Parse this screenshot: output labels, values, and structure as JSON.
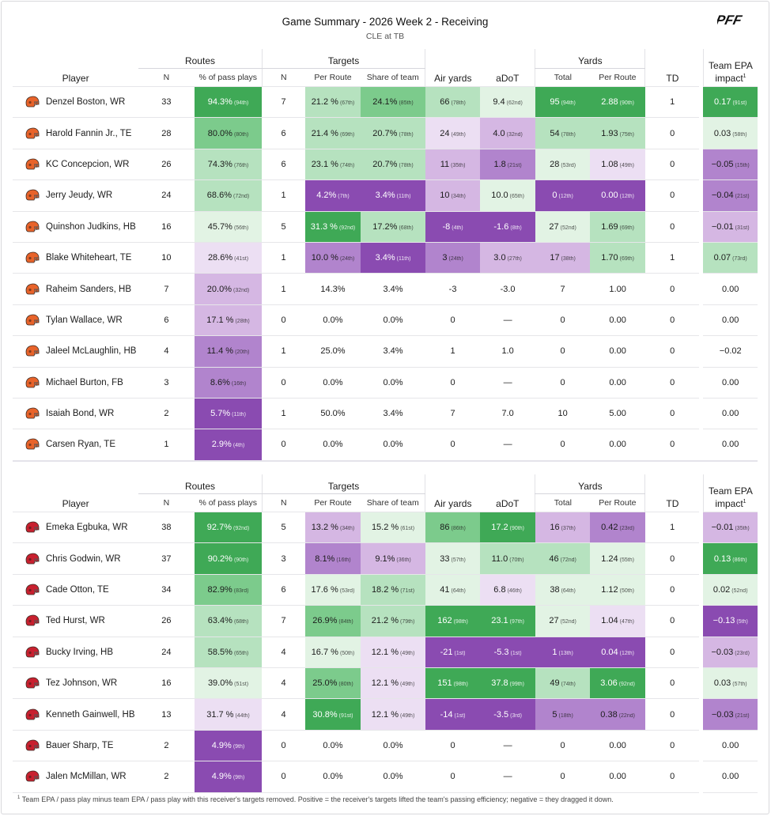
{
  "title": "Game Summary - 2026 Week 2 - Receiving",
  "subtitle": "CLE at TB",
  "logo_text": "PFF",
  "headers": {
    "player": "Player",
    "routes": "Routes",
    "targets": "Targets",
    "yards": "Yards",
    "n": "N",
    "pct_pass_plays": "% of pass plays",
    "per_route": "Per Route",
    "share_of_team": "Share of team",
    "air_yards": "Air yards",
    "adot": "aDoT",
    "total": "Total",
    "td": "TD",
    "epa": "Team EPA impact",
    "epa_sup": "1"
  },
  "colors": {
    "green_dark": "#3fa956",
    "green_mid": "#7ccb8c",
    "green_light": "#b6e2bf",
    "green_pale": "#e2f3e4",
    "purple_pale": "#ecdff3",
    "purple_light": "#d5b7e3",
    "purple_mid": "#b184cd",
    "purple_dark": "#8a4bb1"
  },
  "teams": [
    {
      "id": "cle",
      "helmet_color": "#e8632a",
      "players": [
        {
          "name": "Denzel Boston, WR",
          "routes_n": "33",
          "routes_pct": "94.3%",
          "routes_pct_pr": "(94th)",
          "routes_pct_c": "g4",
          "targets_n": "7",
          "per_route": "21.2 %",
          "per_route_pr": "(67th)",
          "per_route_c": "g2",
          "share": "24.1%",
          "share_pr": "(85th)",
          "share_c": "g3",
          "air": "66",
          "air_pr": "(78th)",
          "air_c": "g2",
          "adot": "9.4",
          "adot_pr": "(62nd)",
          "adot_c": "g1",
          "yds": "95",
          "yds_pr": "(94th)",
          "yds_c": "g4",
          "ypr": "2.88",
          "ypr_pr": "(90th)",
          "ypr_c": "g4",
          "td": "1",
          "epa": "0.17",
          "epa_pr": "(91st)",
          "epa_c": "g4"
        },
        {
          "name": "Harold Fannin Jr., TE",
          "routes_n": "28",
          "routes_pct": "80.0%",
          "routes_pct_pr": "(80th)",
          "routes_pct_c": "g3",
          "targets_n": "6",
          "per_route": "21.4 %",
          "per_route_pr": "(69th)",
          "per_route_c": "g2",
          "share": "20.7%",
          "share_pr": "(78th)",
          "share_c": "g2",
          "air": "24",
          "air_pr": "(49th)",
          "air_c": "p1",
          "adot": "4.0",
          "adot_pr": "(32nd)",
          "adot_c": "p2",
          "yds": "54",
          "yds_pr": "(78th)",
          "yds_c": "g2",
          "ypr": "1.93",
          "ypr_pr": "(75th)",
          "ypr_c": "g2",
          "td": "0",
          "epa": "0.03",
          "epa_pr": "(58th)",
          "epa_c": "g1"
        },
        {
          "name": "KC Concepcion, WR",
          "routes_n": "26",
          "routes_pct": "74.3%",
          "routes_pct_pr": "(76th)",
          "routes_pct_c": "g2",
          "targets_n": "6",
          "per_route": "23.1 %",
          "per_route_pr": "(74th)",
          "per_route_c": "g2",
          "share": "20.7%",
          "share_pr": "(78th)",
          "share_c": "g2",
          "air": "11",
          "air_pr": "(35th)",
          "air_c": "p2",
          "adot": "1.8",
          "adot_pr": "(21st)",
          "adot_c": "p3",
          "yds": "28",
          "yds_pr": "(53rd)",
          "yds_c": "g1",
          "ypr": "1.08",
          "ypr_pr": "(49th)",
          "ypr_c": "p1",
          "td": "0",
          "epa": "−0.05",
          "epa_pr": "(15th)",
          "epa_c": "p3"
        },
        {
          "name": "Jerry Jeudy, WR",
          "routes_n": "24",
          "routes_pct": "68.6%",
          "routes_pct_pr": "(72nd)",
          "routes_pct_c": "g2",
          "targets_n": "1",
          "per_route": "4.2%",
          "per_route_pr": "(7th)",
          "per_route_c": "p4",
          "share": "3.4%",
          "share_pr": "(11th)",
          "share_c": "p4",
          "air": "10",
          "air_pr": "(34th)",
          "air_c": "p2",
          "adot": "10.0",
          "adot_pr": "(65th)",
          "adot_c": "g1",
          "yds": "0",
          "yds_pr": "(12th)",
          "yds_c": "p4",
          "ypr": "0.00",
          "ypr_pr": "(12th)",
          "ypr_c": "p4",
          "td": "0",
          "epa": "−0.04",
          "epa_pr": "(21st)",
          "epa_c": "p3"
        },
        {
          "name": "Quinshon Judkins, HB",
          "routes_n": "16",
          "routes_pct": "45.7%",
          "routes_pct_pr": "(56th)",
          "routes_pct_c": "g1",
          "targets_n": "5",
          "per_route": "31.3 %",
          "per_route_pr": "(92nd)",
          "per_route_c": "g4",
          "share": "17.2%",
          "share_pr": "(68th)",
          "share_c": "g2",
          "air": "-8",
          "air_pr": "(4th)",
          "air_c": "p4",
          "adot": "-1.6",
          "adot_pr": "(8th)",
          "adot_c": "p4",
          "yds": "27",
          "yds_pr": "(52nd)",
          "yds_c": "g1",
          "ypr": "1.69",
          "ypr_pr": "(69th)",
          "ypr_c": "g2",
          "td": "0",
          "epa": "−0.01",
          "epa_pr": "(31st)",
          "epa_c": "p2"
        },
        {
          "name": "Blake Whiteheart, TE",
          "routes_n": "10",
          "routes_pct": "28.6%",
          "routes_pct_pr": "(41st)",
          "routes_pct_c": "p1",
          "targets_n": "1",
          "per_route": "10.0 %",
          "per_route_pr": "(24th)",
          "per_route_c": "p3",
          "share": "3.4%",
          "share_pr": "(11th)",
          "share_c": "p4",
          "air": "3",
          "air_pr": "(24th)",
          "air_c": "p3",
          "adot": "3.0",
          "adot_pr": "(27th)",
          "adot_c": "p2",
          "yds": "17",
          "yds_pr": "(38th)",
          "yds_c": "p2",
          "ypr": "1.70",
          "ypr_pr": "(69th)",
          "ypr_c": "g2",
          "td": "1",
          "epa": "0.07",
          "epa_pr": "(73rd)",
          "epa_c": "g2"
        },
        {
          "name": "Raheim Sanders, HB",
          "routes_n": "7",
          "routes_pct": "20.0%",
          "routes_pct_pr": "(32nd)",
          "routes_pct_c": "p2",
          "targets_n": "1",
          "per_route": "14.3%",
          "share": "3.4%",
          "air": "-3",
          "adot": "-3.0",
          "yds": "7",
          "ypr": "1.00",
          "td": "0",
          "epa": "0.00"
        },
        {
          "name": "Tylan Wallace, WR",
          "routes_n": "6",
          "routes_pct": "17.1 %",
          "routes_pct_pr": "(28th)",
          "routes_pct_c": "p2",
          "targets_n": "0",
          "per_route": "0.0%",
          "share": "0.0%",
          "air": "0",
          "adot": "—",
          "yds": "0",
          "ypr": "0.00",
          "td": "0",
          "epa": "0.00"
        },
        {
          "name": "Jaleel McLaughlin, HB",
          "routes_n": "4",
          "routes_pct": "11.4 %",
          "routes_pct_pr": "(20th)",
          "routes_pct_c": "p3",
          "targets_n": "1",
          "per_route": "25.0%",
          "share": "3.4%",
          "air": "1",
          "adot": "1.0",
          "yds": "0",
          "ypr": "0.00",
          "td": "0",
          "epa": "−0.02"
        },
        {
          "name": "Michael Burton, FB",
          "routes_n": "3",
          "routes_pct": "8.6%",
          "routes_pct_pr": "(16th)",
          "routes_pct_c": "p3",
          "targets_n": "0",
          "per_route": "0.0%",
          "share": "0.0%",
          "air": "0",
          "adot": "—",
          "yds": "0",
          "ypr": "0.00",
          "td": "0",
          "epa": "0.00"
        },
        {
          "name": "Isaiah Bond, WR",
          "routes_n": "2",
          "routes_pct": "5.7%",
          "routes_pct_pr": "(11th)",
          "routes_pct_c": "p4",
          "targets_n": "1",
          "per_route": "50.0%",
          "share": "3.4%",
          "air": "7",
          "adot": "7.0",
          "yds": "10",
          "ypr": "5.00",
          "td": "0",
          "epa": "0.00"
        },
        {
          "name": "Carsen Ryan, TE",
          "routes_n": "1",
          "routes_pct": "2.9%",
          "routes_pct_pr": "(4th)",
          "routes_pct_c": "p4",
          "targets_n": "0",
          "per_route": "0.0%",
          "share": "0.0%",
          "air": "0",
          "adot": "—",
          "yds": "0",
          "ypr": "0.00",
          "td": "0",
          "epa": "0.00"
        }
      ]
    },
    {
      "id": "tb",
      "helmet_color": "#c8202f",
      "players": [
        {
          "name": "Emeka Egbuka, WR",
          "routes_n": "38",
          "routes_pct": "92.7%",
          "routes_pct_pr": "(92nd)",
          "routes_pct_c": "g4",
          "targets_n": "5",
          "per_route": "13.2 %",
          "per_route_pr": "(34th)",
          "per_route_c": "p2",
          "share": "15.2 %",
          "share_pr": "(61st)",
          "share_c": "g1",
          "air": "86",
          "air_pr": "(86th)",
          "air_c": "g3",
          "adot": "17.2",
          "adot_pr": "(90th)",
          "adot_c": "g4",
          "yds": "16",
          "yds_pr": "(37th)",
          "yds_c": "p2",
          "ypr": "0.42",
          "ypr_pr": "(23rd)",
          "ypr_c": "p3",
          "td": "1",
          "epa": "−0.01",
          "epa_pr": "(35th)",
          "epa_c": "p2"
        },
        {
          "name": "Chris Godwin, WR",
          "routes_n": "37",
          "routes_pct": "90.2%",
          "routes_pct_pr": "(90th)",
          "routes_pct_c": "g4",
          "targets_n": "3",
          "per_route": "8.1%",
          "per_route_pr": "(16th)",
          "per_route_c": "p3",
          "share": "9.1%",
          "share_pr": "(36th)",
          "share_c": "p2",
          "air": "33",
          "air_pr": "(57th)",
          "air_c": "g1",
          "adot": "11.0",
          "adot_pr": "(70th)",
          "adot_c": "g2",
          "yds": "46",
          "yds_pr": "(72nd)",
          "yds_c": "g2",
          "ypr": "1.24",
          "ypr_pr": "(55th)",
          "ypr_c": "g1",
          "td": "0",
          "epa": "0.13",
          "epa_pr": "(86th)",
          "epa_c": "g4"
        },
        {
          "name": "Cade Otton, TE",
          "routes_n": "34",
          "routes_pct": "82.9%",
          "routes_pct_pr": "(83rd)",
          "routes_pct_c": "g3",
          "targets_n": "6",
          "per_route": "17.6 %",
          "per_route_pr": "(53rd)",
          "per_route_c": "g1",
          "share": "18.2 %",
          "share_pr": "(71st)",
          "share_c": "g2",
          "air": "41",
          "air_pr": "(64th)",
          "air_c": "g1",
          "adot": "6.8",
          "adot_pr": "(46th)",
          "adot_c": "p1",
          "yds": "38",
          "yds_pr": "(64th)",
          "yds_c": "g1",
          "ypr": "1.12",
          "ypr_pr": "(50th)",
          "ypr_c": "g1",
          "td": "0",
          "epa": "0.02",
          "epa_pr": "(52nd)",
          "epa_c": "g1"
        },
        {
          "name": "Ted Hurst, WR",
          "routes_n": "26",
          "routes_pct": "63.4%",
          "routes_pct_pr": "(68th)",
          "routes_pct_c": "g2",
          "targets_n": "7",
          "per_route": "26.9%",
          "per_route_pr": "(84th)",
          "per_route_c": "g3",
          "share": "21.2 %",
          "share_pr": "(79th)",
          "share_c": "g2",
          "air": "162",
          "air_pr": "(98th)",
          "air_c": "g4",
          "adot": "23.1",
          "adot_pr": "(97th)",
          "adot_c": "g4",
          "yds": "27",
          "yds_pr": "(52nd)",
          "yds_c": "g1",
          "ypr": "1.04",
          "ypr_pr": "(47th)",
          "ypr_c": "p1",
          "td": "0",
          "epa": "−0.13",
          "epa_pr": "(5th)",
          "epa_c": "p4"
        },
        {
          "name": "Bucky Irving, HB",
          "routes_n": "24",
          "routes_pct": "58.5%",
          "routes_pct_pr": "(65th)",
          "routes_pct_c": "g2",
          "targets_n": "4",
          "per_route": "16.7 %",
          "per_route_pr": "(50th)",
          "per_route_c": "g1",
          "share": "12.1 %",
          "share_pr": "(49th)",
          "share_c": "p1",
          "air": "-21",
          "air_pr": "(1st)",
          "air_c": "p4",
          "adot": "-5.3",
          "adot_pr": "(1st)",
          "adot_c": "p4",
          "yds": "1",
          "yds_pr": "(13th)",
          "yds_c": "p4",
          "ypr": "0.04",
          "ypr_pr": "(12th)",
          "ypr_c": "p4",
          "td": "0",
          "epa": "−0.03",
          "epa_pr": "(23rd)",
          "epa_c": "p2"
        },
        {
          "name": "Tez Johnson, WR",
          "routes_n": "16",
          "routes_pct": "39.0%",
          "routes_pct_pr": "(51st)",
          "routes_pct_c": "g1",
          "targets_n": "4",
          "per_route": "25.0%",
          "per_route_pr": "(80th)",
          "per_route_c": "g3",
          "share": "12.1 %",
          "share_pr": "(49th)",
          "share_c": "p1",
          "air": "151",
          "air_pr": "(98th)",
          "air_c": "g4",
          "adot": "37.8",
          "adot_pr": "(99th)",
          "adot_c": "g4",
          "yds": "49",
          "yds_pr": "(74th)",
          "yds_c": "g2",
          "ypr": "3.06",
          "ypr_pr": "(92nd)",
          "ypr_c": "g4",
          "td": "0",
          "epa": "0.03",
          "epa_pr": "(57th)",
          "epa_c": "g1"
        },
        {
          "name": "Kenneth Gainwell, HB",
          "routes_n": "13",
          "routes_pct": "31.7 %",
          "routes_pct_pr": "(44th)",
          "routes_pct_c": "p1",
          "targets_n": "4",
          "per_route": "30.8%",
          "per_route_pr": "(91st)",
          "per_route_c": "g4",
          "share": "12.1 %",
          "share_pr": "(49th)",
          "share_c": "p1",
          "air": "-14",
          "air_pr": "(1st)",
          "air_c": "p4",
          "adot": "-3.5",
          "adot_pr": "(3rd)",
          "adot_c": "p4",
          "yds": "5",
          "yds_pr": "(18th)",
          "yds_c": "p3",
          "ypr": "0.38",
          "ypr_pr": "(22nd)",
          "ypr_c": "p3",
          "td": "0",
          "epa": "−0.03",
          "epa_pr": "(21st)",
          "epa_c": "p3"
        },
        {
          "name": "Bauer Sharp, TE",
          "routes_n": "2",
          "routes_pct": "4.9%",
          "routes_pct_pr": "(9th)",
          "routes_pct_c": "p4",
          "targets_n": "0",
          "per_route": "0.0%",
          "share": "0.0%",
          "air": "0",
          "adot": "—",
          "yds": "0",
          "ypr": "0.00",
          "td": "0",
          "epa": "0.00"
        },
        {
          "name": "Jalen McMillan, WR",
          "routes_n": "2",
          "routes_pct": "4.9%",
          "routes_pct_pr": "(9th)",
          "routes_pct_c": "p4",
          "targets_n": "0",
          "per_route": "0.0%",
          "share": "0.0%",
          "air": "0",
          "adot": "—",
          "yds": "0",
          "ypr": "0.00",
          "td": "0",
          "epa": "0.00"
        }
      ]
    }
  ],
  "footnote_marker": "1",
  "footnote": "Team EPA / pass play minus team EPA / pass play with this receiver's targets removed. Positive = the receiver's targets lifted the team's passing efficiency; negative = they dragged it down."
}
